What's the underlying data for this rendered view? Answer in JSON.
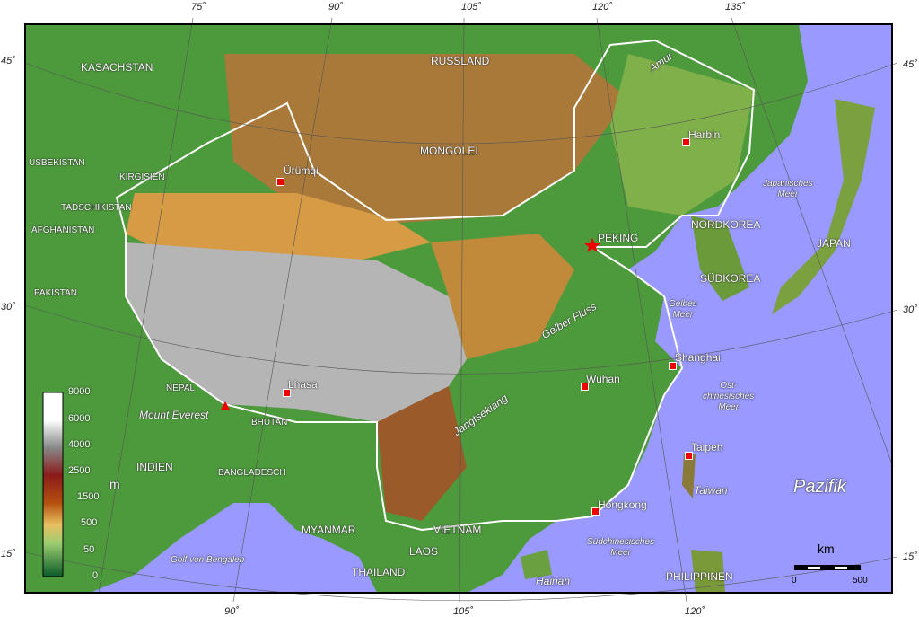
{
  "colors": {
    "sea": "#9999ff",
    "lowland": "#1f8a3a",
    "highland": "#a0522d",
    "plateau": "#c0c0c0",
    "border_china": "#ffffff",
    "city": "#ee0000"
  },
  "countries": {
    "kasachstan": "KASACHSTAN",
    "russland": "RUSSLAND",
    "mongolei": "MONGOLEI",
    "usbekistan": "USBEKISTAN",
    "kirgisien": "KIRGISIEN",
    "tadschikistan": "TADSCHIKISTAN",
    "afghanistan": "AFGHANISTAN",
    "pakistan": "PAKISTAN",
    "nordkorea": "NORDKOREA",
    "japan": "JAPAN",
    "suedkorea": "SÜDKOREA",
    "nepal": "NEPAL",
    "bhutan": "BHUTAN",
    "indien": "INDIEN",
    "bangladesch": "BANGLADESCH",
    "myanmar": "MYANMAR",
    "vietnam": "VIETNAM",
    "laos": "LAOS",
    "thailand": "THAILAND",
    "philippinen": "PHILIPPINEN"
  },
  "cities": {
    "urumqi": "Ürümqi",
    "harbin": "Harbin",
    "peking": "PEKING",
    "shanghai": "Shanghai",
    "wuhan": "Wuhan",
    "lhasa": "Lhasa",
    "taipeh": "Taipeh",
    "hongkong": "Hongkong"
  },
  "features": {
    "amur": "Amur",
    "gelber_fluss": "Gelber Fluss",
    "jangtsekiang": "Jangtsekiang",
    "mount_everest": "Mount Everest",
    "taiwan": "Taiwan",
    "hainan": "Hainan",
    "pazifik": "Pazifik",
    "japanisches_meer": [
      "Japanisches",
      "Meer"
    ],
    "gelbes_meer": [
      "Gelbes",
      "Meer"
    ],
    "ostchinesisches_meer": [
      "Ost-",
      "chinesisches",
      "Meer"
    ],
    "suedchinesisches_meer": [
      "Südchinesisches",
      "Meer"
    ],
    "golf_von_bengalen": "Golf von Bengalen"
  },
  "graticule": {
    "top": [
      "75˚",
      "90˚",
      "105˚",
      "120˚",
      "135˚"
    ],
    "bottom": [
      "90˚",
      "105˚",
      "120˚"
    ],
    "left": [
      "45˚",
      "30˚",
      "15˚"
    ],
    "right": [
      "45˚",
      "30˚",
      "15˚"
    ]
  },
  "legend": {
    "unit": "m",
    "ticks": [
      "9000",
      "6000",
      "4000",
      "2500",
      "1500",
      "500",
      "50",
      "0"
    ]
  },
  "scale": {
    "unit": "km",
    "start": "0",
    "end": "500"
  }
}
